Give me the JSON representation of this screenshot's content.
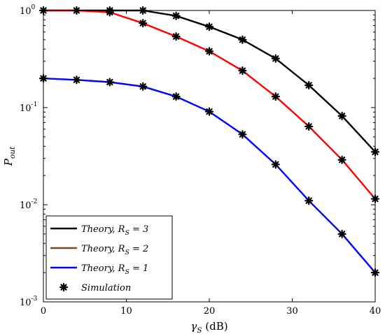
{
  "chart_data": {
    "type": "line",
    "yscale": "log",
    "xlabel": "γS (dB)",
    "ylabel": "Pout",
    "xlim": [
      0,
      40
    ],
    "ylim": [
      0.001,
      1
    ],
    "x_ticks": [
      "0",
      "10",
      "20",
      "30",
      "40"
    ],
    "y_ticks": [
      {
        "mantissa": "10",
        "exp": "0"
      },
      {
        "mantissa": "10",
        "exp": "-1"
      },
      {
        "mantissa": "10",
        "exp": "-2"
      },
      {
        "mantissa": "10",
        "exp": "-3"
      }
    ],
    "grid": false,
    "legend_position": "bottom-left",
    "series": [
      {
        "name": "Theory, RS = 3",
        "color": "#000000",
        "x": [
          0,
          4,
          8,
          12,
          16,
          20,
          24,
          28,
          32,
          36,
          40
        ],
        "y": [
          1.0,
          1.0,
          1.0,
          1.0,
          0.88,
          0.68,
          0.5,
          0.32,
          0.17,
          0.082,
          0.035
        ]
      },
      {
        "name": "Theory, RS = 2",
        "color": "#ff0000",
        "legend_color": "#8b4513",
        "x": [
          0,
          4,
          8,
          12,
          16,
          20,
          24,
          28,
          32,
          36,
          40
        ],
        "y": [
          1.0,
          1.0,
          0.96,
          0.74,
          0.54,
          0.38,
          0.24,
          0.13,
          0.064,
          0.029,
          0.0115
        ]
      },
      {
        "name": "Theory, RS = 1",
        "color": "#0000ff",
        "x": [
          0,
          4,
          8,
          12,
          16,
          20,
          24,
          28,
          32,
          36,
          40
        ],
        "y": [
          0.2,
          0.193,
          0.183,
          0.165,
          0.13,
          0.091,
          0.053,
          0.026,
          0.011,
          0.005,
          0.002
        ]
      }
    ],
    "simulation": {
      "name": "Simulation",
      "color": "#000000",
      "marker": "asterisk",
      "points": [
        {
          "x": 0,
          "y": 1.0
        },
        {
          "x": 4,
          "y": 1.0
        },
        {
          "x": 8,
          "y": 1.0
        },
        {
          "x": 12,
          "y": 1.0
        },
        {
          "x": 16,
          "y": 0.88
        },
        {
          "x": 20,
          "y": 0.68
        },
        {
          "x": 24,
          "y": 0.5
        },
        {
          "x": 28,
          "y": 0.32
        },
        {
          "x": 32,
          "y": 0.17
        },
        {
          "x": 36,
          "y": 0.082
        },
        {
          "x": 40,
          "y": 0.035
        },
        {
          "x": 8,
          "y": 0.96
        },
        {
          "x": 12,
          "y": 0.74
        },
        {
          "x": 16,
          "y": 0.54
        },
        {
          "x": 20,
          "y": 0.38
        },
        {
          "x": 24,
          "y": 0.24
        },
        {
          "x": 28,
          "y": 0.13
        },
        {
          "x": 32,
          "y": 0.064
        },
        {
          "x": 36,
          "y": 0.029
        },
        {
          "x": 40,
          "y": 0.0115
        },
        {
          "x": 0,
          "y": 0.2
        },
        {
          "x": 4,
          "y": 0.193
        },
        {
          "x": 8,
          "y": 0.183
        },
        {
          "x": 12,
          "y": 0.165
        },
        {
          "x": 16,
          "y": 0.13
        },
        {
          "x": 20,
          "y": 0.091
        },
        {
          "x": 24,
          "y": 0.053
        },
        {
          "x": 28,
          "y": 0.026
        },
        {
          "x": 32,
          "y": 0.011
        },
        {
          "x": 36,
          "y": 0.005
        },
        {
          "x": 40,
          "y": 0.002
        }
      ]
    },
    "legend": [
      {
        "label": "Theory, RS = 3",
        "color": "#000000",
        "kind": "line"
      },
      {
        "label": "Theory, RS = 2",
        "color": "#8b4513",
        "kind": "line"
      },
      {
        "label": "Theory, RS = 1",
        "color": "#0000ff",
        "kind": "line"
      },
      {
        "label": "Simulation",
        "color": "#000000",
        "kind": "marker"
      }
    ]
  }
}
